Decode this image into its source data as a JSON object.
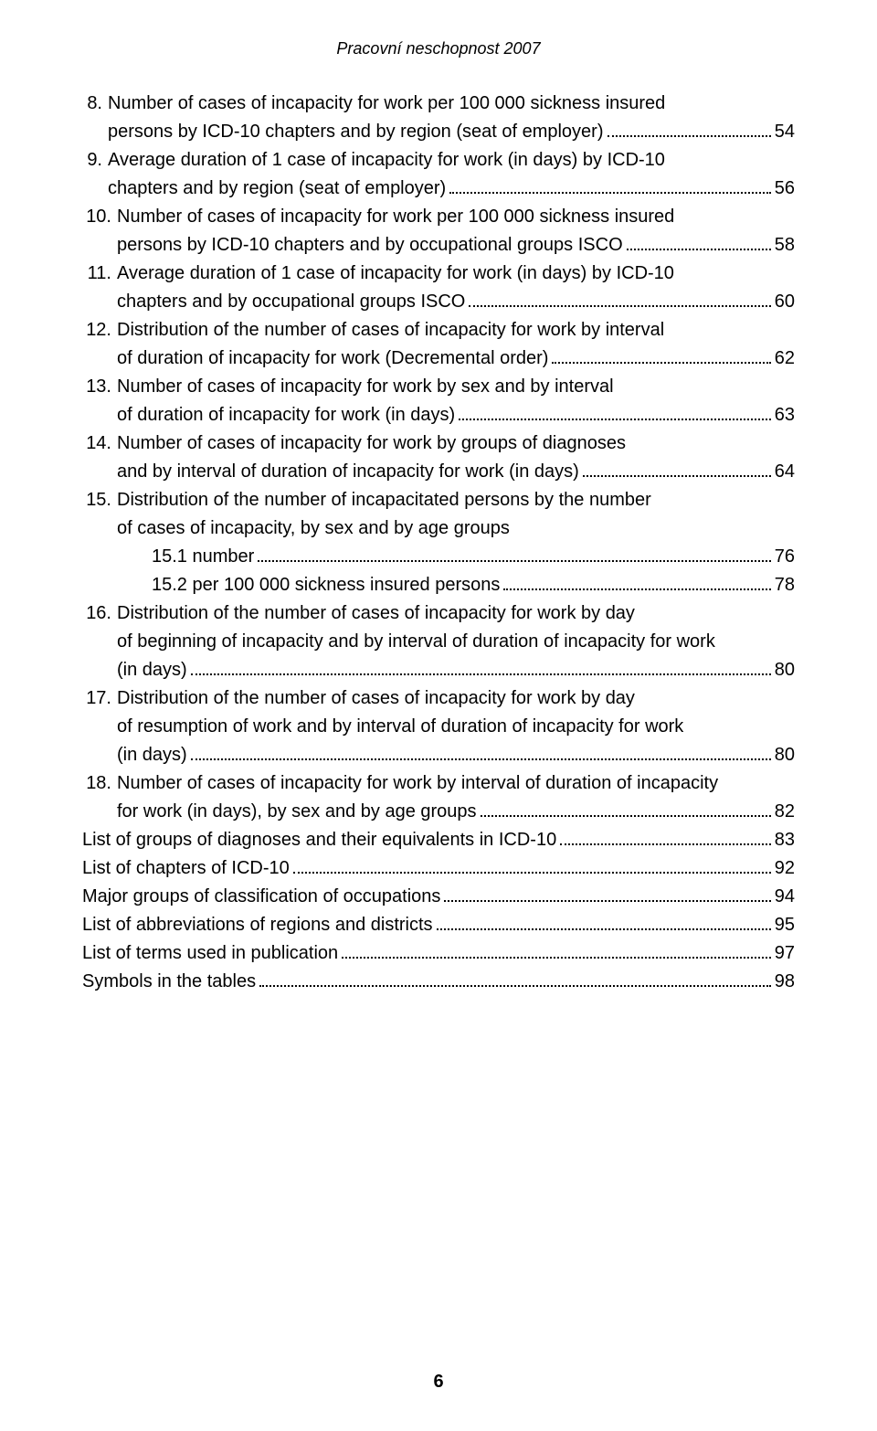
{
  "header": "Pracovní neschopnost 2007",
  "entries": [
    {
      "num": "8.",
      "lines": [
        "Number of cases of incapacity for work per 100 000 sickness insured",
        "persons by ICD-10 chapters and by region (seat of employer) "
      ],
      "page": "54"
    },
    {
      "num": "9.",
      "lines": [
        "Average duration of 1 case of incapacity for work (in days) by ICD-10",
        "chapters and by region (seat of employer)"
      ],
      "page": "56"
    },
    {
      "num": "10.",
      "lines": [
        "Number of cases of incapacity for work per 100 000 sickness insured",
        "persons by ICD-10 chapters and by occupational groups ISCO "
      ],
      "page": "58"
    },
    {
      "num": "11.",
      "lines": [
        "Average duration of 1 case of incapacity for work (in days) by ICD-10",
        "chapters and by occupational groups ISCO "
      ],
      "page": "60"
    },
    {
      "num": "12.",
      "lines": [
        "Distribution of the number of cases of incapacity for work by interval",
        "of duration of incapacity for work (Decremental order) "
      ],
      "page": "62"
    },
    {
      "num": "13.",
      "lines": [
        "Number of cases of incapacity for work by sex and by interval",
        "of duration of incapacity for work (in days) "
      ],
      "page": "63"
    },
    {
      "num": "14.",
      "lines": [
        "Number of cases of incapacity for work by groups of diagnoses",
        "and by interval of duration of incapacity for work (in days) "
      ],
      "page": "64"
    },
    {
      "num": "15.",
      "lines": [
        "Distribution of the number of incapacitated persons by the number",
        "of cases of incapacity, by sex and by age groups"
      ],
      "page": null,
      "subs": [
        {
          "text": "15.1 number ",
          "page": "76"
        },
        {
          "text": "15.2 per 100 000 sickness insured persons",
          "page": "78"
        }
      ]
    },
    {
      "num": "16.",
      "lines": [
        "Distribution of the number of cases of incapacity for work by day",
        "of beginning of incapacity and by interval of duration of incapacity for work",
        "(in days)"
      ],
      "page": "80"
    },
    {
      "num": "17.",
      "lines": [
        "Distribution of the number of cases of incapacity for work by day",
        "of resumption of work and by interval of duration of incapacity for work",
        "(in days)"
      ],
      "page": "80"
    },
    {
      "num": "18.",
      "lines": [
        "Number of cases of incapacity for work by interval of duration of incapacity",
        "for work (in days), by sex and by age groups "
      ],
      "page": "82"
    }
  ],
  "simple_entries": [
    {
      "text": "List of groups of diagnoses and their equivalents in ICD-10 ",
      "page": "83"
    },
    {
      "text": "List of chapters of ICD-10 ",
      "page": "92"
    },
    {
      "text": "Major groups of classification of occupations ",
      "page": "94"
    },
    {
      "text": "List of abbreviations of regions and districts ",
      "page": "95"
    },
    {
      "text": "List of terms used in publication ",
      "page": "97"
    },
    {
      "text": "Symbols in the tables ",
      "page": "98"
    }
  ],
  "page_number": "6",
  "colors": {
    "text": "#000000",
    "background": "#ffffff"
  },
  "typography": {
    "font_family": "Arial",
    "font_size": 20,
    "header_font_size": 18,
    "header_style": "italic",
    "page_number_weight": "bold"
  }
}
